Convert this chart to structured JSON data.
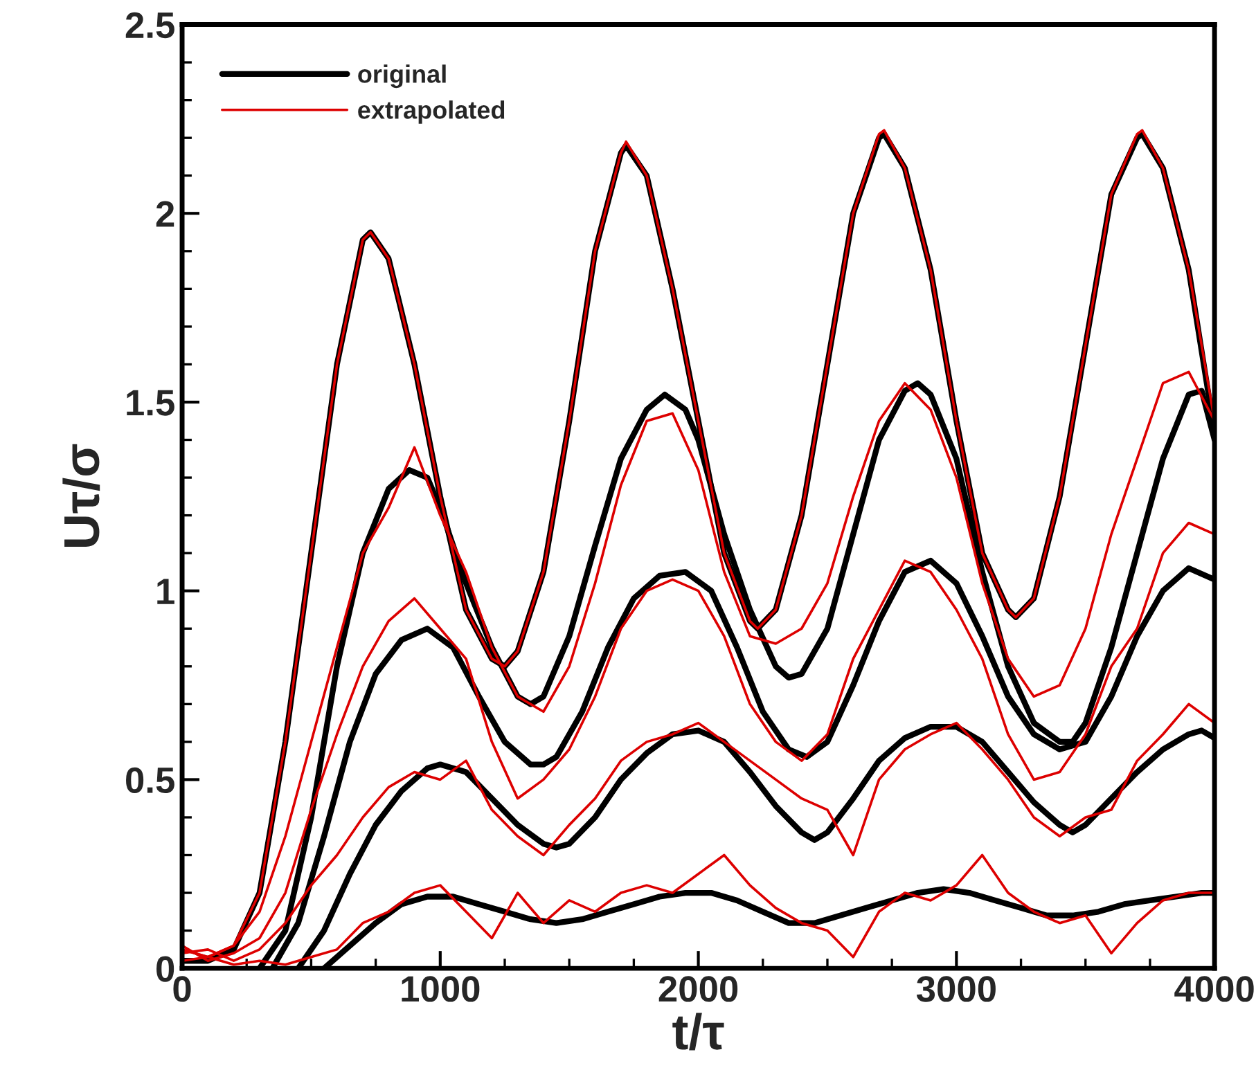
{
  "chart_data": {
    "type": "line",
    "xlabel": "t/τ",
    "ylabel": "Uτ/σ",
    "xlim": [
      0,
      4000
    ],
    "ylim": [
      0,
      2.5
    ],
    "xticks": [
      0,
      {
        "value": 250,
        "label": null
      },
      {
        "value": 500,
        "label": null
      },
      {
        "value": 750,
        "label": null
      },
      1000,
      {
        "value": 1250,
        "label": null
      },
      {
        "value": 1500,
        "label": null
      },
      {
        "value": 1750,
        "label": null
      },
      2000,
      {
        "value": 2250,
        "label": null
      },
      {
        "value": 2500,
        "label": null
      },
      {
        "value": 2750,
        "label": null
      },
      3000,
      {
        "value": 3250,
        "label": null
      },
      {
        "value": 3500,
        "label": null
      },
      {
        "value": 3750,
        "label": null
      },
      4000
    ],
    "yticks": [
      0,
      {
        "value": 0.1,
        "label": null
      },
      {
        "value": 0.2,
        "label": null
      },
      {
        "value": 0.3,
        "label": null
      },
      {
        "value": 0.4,
        "label": null
      },
      0.5,
      {
        "value": 0.6,
        "label": null
      },
      {
        "value": 0.7,
        "label": null
      },
      {
        "value": 0.8,
        "label": null
      },
      {
        "value": 0.9,
        "label": null
      },
      1,
      {
        "value": 1.1,
        "label": null
      },
      {
        "value": 1.2,
        "label": null
      },
      {
        "value": 1.3,
        "label": null
      },
      {
        "value": 1.4,
        "label": null
      },
      1.5,
      {
        "value": 1.6,
        "label": null
      },
      {
        "value": 1.7,
        "label": null
      },
      {
        "value": 1.8,
        "label": null
      },
      {
        "value": 1.9,
        "label": null
      },
      2,
      {
        "value": 2.1,
        "label": null
      },
      {
        "value": 2.2,
        "label": null
      },
      {
        "value": 2.3,
        "label": null
      },
      {
        "value": 2.4,
        "label": null
      },
      2.5
    ],
    "grid": false,
    "legend": "top left",
    "marker": "none",
    "line_style": "solid",
    "series": [
      {
        "name": "original",
        "color": "#000000",
        "x": [
          0,
          100,
          200,
          300,
          400,
          500,
          600,
          700,
          730,
          800,
          900,
          1000,
          1100,
          1200,
          1250,
          1300,
          1400,
          1500,
          1600,
          1700,
          1720,
          1800,
          1900,
          2000,
          2100,
          2200,
          2230,
          2300,
          2400,
          2500,
          2600,
          2700,
          2720,
          2800,
          2900,
          3000,
          3100,
          3200,
          3230,
          3300,
          3400,
          3500,
          3600,
          3700,
          3720,
          3800,
          3900,
          4000
        ],
        "values": [
          0.02,
          0.02,
          0.05,
          0.2,
          0.6,
          1.1,
          1.6,
          1.93,
          1.95,
          1.88,
          1.6,
          1.25,
          0.95,
          0.82,
          0.8,
          0.84,
          1.05,
          1.45,
          1.9,
          2.16,
          2.18,
          2.1,
          1.8,
          1.45,
          1.1,
          0.92,
          0.9,
          0.95,
          1.2,
          1.6,
          2.0,
          2.2,
          2.21,
          2.12,
          1.85,
          1.45,
          1.1,
          0.95,
          0.93,
          0.98,
          1.25,
          1.65,
          2.05,
          2.2,
          2.21,
          2.12,
          1.85,
          1.42
        ]
      },
      {
        "color": "#000000",
        "x": [
          300,
          400,
          500,
          600,
          700,
          800,
          880,
          950,
          1000,
          1100,
          1200,
          1300,
          1350,
          1400,
          1500,
          1600,
          1700,
          1800,
          1870,
          1950,
          2000,
          2100,
          2200,
          2300,
          2350,
          2400,
          2500,
          2600,
          2700,
          2800,
          2850,
          2900,
          3000,
          3100,
          3200,
          3300,
          3400,
          3450,
          3500,
          3600,
          3700,
          3800,
          3900,
          3950,
          4000
        ],
        "values": [
          0,
          0.1,
          0.4,
          0.8,
          1.1,
          1.27,
          1.32,
          1.3,
          1.22,
          1.02,
          0.85,
          0.72,
          0.7,
          0.72,
          0.88,
          1.12,
          1.35,
          1.48,
          1.52,
          1.48,
          1.4,
          1.15,
          0.95,
          0.8,
          0.77,
          0.78,
          0.9,
          1.15,
          1.4,
          1.53,
          1.55,
          1.52,
          1.35,
          1.05,
          0.8,
          0.65,
          0.6,
          0.6,
          0.65,
          0.85,
          1.1,
          1.35,
          1.52,
          1.53,
          1.4
        ]
      },
      {
        "color": "#000000",
        "x": [
          350,
          450,
          550,
          650,
          750,
          850,
          950,
          1050,
          1150,
          1250,
          1350,
          1400,
          1450,
          1550,
          1650,
          1750,
          1850,
          1950,
          2050,
          2150,
          2250,
          2350,
          2420,
          2500,
          2600,
          2700,
          2800,
          2900,
          3000,
          3100,
          3200,
          3300,
          3400,
          3500,
          3600,
          3700,
          3800,
          3900,
          4000
        ],
        "values": [
          0,
          0.12,
          0.35,
          0.6,
          0.78,
          0.87,
          0.9,
          0.85,
          0.72,
          0.6,
          0.54,
          0.54,
          0.56,
          0.68,
          0.85,
          0.98,
          1.04,
          1.05,
          1.0,
          0.85,
          0.68,
          0.58,
          0.56,
          0.6,
          0.75,
          0.92,
          1.05,
          1.08,
          1.02,
          0.88,
          0.72,
          0.62,
          0.58,
          0.6,
          0.72,
          0.88,
          1.0,
          1.06,
          1.03
        ]
      },
      {
        "color": "#000000",
        "x": [
          450,
          550,
          650,
          750,
          850,
          950,
          1000,
          1100,
          1200,
          1300,
          1400,
          1450,
          1500,
          1600,
          1700,
          1800,
          1900,
          2000,
          2100,
          2200,
          2300,
          2400,
          2450,
          2500,
          2600,
          2700,
          2800,
          2900,
          3000,
          3100,
          3200,
          3300,
          3400,
          3450,
          3500,
          3600,
          3700,
          3800,
          3900,
          3950,
          4000
        ],
        "values": [
          0,
          0.1,
          0.25,
          0.38,
          0.47,
          0.53,
          0.54,
          0.52,
          0.45,
          0.38,
          0.33,
          0.32,
          0.33,
          0.4,
          0.5,
          0.57,
          0.62,
          0.63,
          0.6,
          0.52,
          0.43,
          0.36,
          0.34,
          0.36,
          0.45,
          0.55,
          0.61,
          0.64,
          0.64,
          0.6,
          0.52,
          0.44,
          0.38,
          0.36,
          0.38,
          0.45,
          0.52,
          0.58,
          0.62,
          0.63,
          0.61
        ]
      },
      {
        "color": "#000000",
        "x": [
          550,
          650,
          750,
          850,
          950,
          1050,
          1150,
          1250,
          1350,
          1450,
          1550,
          1650,
          1750,
          1850,
          1950,
          2050,
          2150,
          2250,
          2350,
          2450,
          2550,
          2650,
          2750,
          2850,
          2950,
          3050,
          3150,
          3250,
          3350,
          3450,
          3550,
          3650,
          3750,
          3850,
          3950,
          4000
        ],
        "values": [
          0,
          0.06,
          0.12,
          0.17,
          0.19,
          0.19,
          0.17,
          0.15,
          0.13,
          0.12,
          0.13,
          0.15,
          0.17,
          0.19,
          0.2,
          0.2,
          0.18,
          0.15,
          0.12,
          0.12,
          0.14,
          0.16,
          0.18,
          0.2,
          0.21,
          0.2,
          0.18,
          0.16,
          0.14,
          0.14,
          0.15,
          0.17,
          0.18,
          0.19,
          0.2,
          0.2
        ]
      },
      {
        "name": "extrapolated",
        "color": "#dd0000",
        "x": [
          0,
          100,
          200,
          300,
          400,
          500,
          600,
          700,
          730,
          800,
          900,
          1000,
          1100,
          1200,
          1250,
          1300,
          1400,
          1500,
          1600,
          1700,
          1720,
          1800,
          1900,
          2000,
          2100,
          2200,
          2230,
          2300,
          2400,
          2500,
          2600,
          2700,
          2720,
          2800,
          2900,
          3000,
          3100,
          3200,
          3230,
          3300,
          3400,
          3500,
          3600,
          3700,
          3720,
          3800,
          3900,
          4000
        ],
        "values": [
          0.05,
          0.03,
          0.06,
          0.2,
          0.6,
          1.1,
          1.6,
          1.93,
          1.95,
          1.88,
          1.6,
          1.25,
          0.95,
          0.82,
          0.8,
          0.84,
          1.05,
          1.45,
          1.9,
          2.16,
          2.19,
          2.1,
          1.8,
          1.45,
          1.1,
          0.92,
          0.9,
          0.95,
          1.2,
          1.6,
          2.0,
          2.21,
          2.22,
          2.12,
          1.85,
          1.45,
          1.1,
          0.95,
          0.93,
          0.98,
          1.25,
          1.65,
          2.05,
          2.21,
          2.22,
          2.12,
          1.85,
          1.45
        ]
      },
      {
        "color": "#dd0000",
        "x": [
          0,
          100,
          200,
          300,
          400,
          500,
          600,
          700,
          800,
          900,
          1000,
          1100,
          1200,
          1300,
          1400,
          1500,
          1600,
          1700,
          1800,
          1900,
          2000,
          2100,
          2200,
          2300,
          2400,
          2500,
          2600,
          2700,
          2800,
          2900,
          3000,
          3100,
          3200,
          3300,
          3400,
          3500,
          3600,
          3700,
          3800,
          3900,
          4000
        ],
        "values": [
          0.05,
          0.03,
          0.06,
          0.15,
          0.35,
          0.6,
          0.85,
          1.1,
          1.22,
          1.38,
          1.2,
          1.05,
          0.85,
          0.72,
          0.68,
          0.8,
          1.02,
          1.28,
          1.45,
          1.47,
          1.32,
          1.05,
          0.88,
          0.86,
          0.9,
          1.02,
          1.25,
          1.45,
          1.55,
          1.48,
          1.3,
          1.02,
          0.82,
          0.72,
          0.75,
          0.9,
          1.15,
          1.35,
          1.55,
          1.58,
          1.45
        ]
      },
      {
        "color": "#dd0000",
        "x": [
          0,
          100,
          200,
          300,
          400,
          500,
          600,
          700,
          800,
          900,
          1000,
          1100,
          1200,
          1300,
          1400,
          1500,
          1600,
          1700,
          1800,
          1900,
          2000,
          2100,
          2200,
          2300,
          2400,
          2500,
          2600,
          2700,
          2800,
          2900,
          3000,
          3100,
          3200,
          3300,
          3400,
          3500,
          3600,
          3700,
          3800,
          3900,
          4000
        ],
        "values": [
          0.06,
          0.02,
          0.04,
          0.08,
          0.2,
          0.42,
          0.62,
          0.8,
          0.92,
          0.98,
          0.9,
          0.82,
          0.6,
          0.45,
          0.5,
          0.58,
          0.72,
          0.9,
          1.0,
          1.03,
          1.0,
          0.88,
          0.7,
          0.6,
          0.55,
          0.62,
          0.82,
          0.95,
          1.08,
          1.05,
          0.95,
          0.82,
          0.62,
          0.5,
          0.52,
          0.62,
          0.8,
          0.9,
          1.1,
          1.18,
          1.15
        ]
      },
      {
        "color": "#dd0000",
        "x": [
          0,
          100,
          200,
          300,
          400,
          500,
          600,
          700,
          800,
          900,
          1000,
          1100,
          1200,
          1300,
          1400,
          1500,
          1600,
          1700,
          1800,
          1900,
          2000,
          2100,
          2200,
          2300,
          2400,
          2500,
          2600,
          2700,
          2800,
          2900,
          3000,
          3100,
          3200,
          3300,
          3400,
          3500,
          3600,
          3700,
          3800,
          3900,
          4000
        ],
        "values": [
          0.04,
          0.05,
          0.02,
          0.05,
          0.12,
          0.22,
          0.3,
          0.4,
          0.48,
          0.52,
          0.5,
          0.55,
          0.42,
          0.35,
          0.3,
          0.38,
          0.45,
          0.55,
          0.6,
          0.62,
          0.65,
          0.6,
          0.55,
          0.5,
          0.45,
          0.42,
          0.3,
          0.5,
          0.58,
          0.62,
          0.65,
          0.58,
          0.5,
          0.4,
          0.35,
          0.4,
          0.42,
          0.55,
          0.62,
          0.7,
          0.65
        ]
      },
      {
        "color": "#dd0000",
        "x": [
          0,
          100,
          200,
          300,
          400,
          500,
          600,
          700,
          800,
          900,
          1000,
          1100,
          1200,
          1300,
          1400,
          1500,
          1600,
          1700,
          1800,
          1900,
          2000,
          2100,
          2200,
          2300,
          2400,
          2500,
          2600,
          2700,
          2800,
          2900,
          3000,
          3100,
          3200,
          3300,
          3400,
          3500,
          3600,
          3700,
          3800,
          3900,
          4000
        ],
        "values": [
          0.02,
          0.03,
          0.01,
          0.02,
          0.01,
          0.03,
          0.05,
          0.12,
          0.15,
          0.2,
          0.22,
          0.15,
          0.08,
          0.2,
          0.12,
          0.18,
          0.15,
          0.2,
          0.22,
          0.2,
          0.25,
          0.3,
          0.22,
          0.16,
          0.12,
          0.1,
          0.03,
          0.15,
          0.2,
          0.18,
          0.22,
          0.3,
          0.2,
          0.15,
          0.12,
          0.14,
          0.04,
          0.12,
          0.18,
          0.2,
          0.2
        ]
      }
    ]
  }
}
